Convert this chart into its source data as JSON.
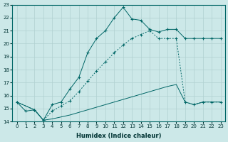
{
  "xlabel": "Humidex (Indice chaleur)",
  "bg_color": "#cce8e8",
  "grid_color": "#b0d0d0",
  "line_color": "#006666",
  "xlim": [
    -0.5,
    23.5
  ],
  "ylim": [
    14,
    23
  ],
  "xticks": [
    0,
    1,
    2,
    3,
    4,
    5,
    6,
    7,
    8,
    9,
    10,
    11,
    12,
    13,
    14,
    15,
    16,
    17,
    18,
    19,
    20,
    21,
    22,
    23
  ],
  "yticks": [
    14,
    15,
    16,
    17,
    18,
    19,
    20,
    21,
    22,
    23
  ],
  "line1_x": [
    0,
    1,
    2,
    3,
    4,
    5,
    6,
    7,
    8,
    9,
    10,
    11,
    12,
    13,
    14,
    15,
    16,
    17,
    18,
    19,
    20,
    21,
    22,
    23
  ],
  "line1_y": [
    15.5,
    14.8,
    14.9,
    14.1,
    15.3,
    15.5,
    16.5,
    17.4,
    19.3,
    20.4,
    21.0,
    22.0,
    22.8,
    21.9,
    21.8,
    21.1,
    20.9,
    21.1,
    21.1,
    20.4,
    20.4,
    20.4,
    20.4,
    20.4
  ],
  "line2_x": [
    0,
    2,
    3,
    4,
    5,
    6,
    7,
    8,
    9,
    10,
    11,
    12,
    13,
    14,
    15,
    16,
    17,
    18,
    19,
    20,
    21,
    22,
    23
  ],
  "line2_y": [
    15.5,
    14.9,
    14.1,
    14.8,
    15.2,
    15.6,
    16.3,
    17.1,
    17.9,
    18.6,
    19.3,
    19.9,
    20.4,
    20.7,
    21.0,
    20.4,
    20.4,
    20.4,
    15.5,
    15.3,
    15.5,
    15.5,
    15.5
  ],
  "line2_dotted": true,
  "line3_x": [
    0,
    2,
    3,
    4,
    5,
    6,
    7,
    8,
    9,
    10,
    11,
    12,
    13,
    14,
    15,
    16,
    17,
    18,
    19,
    20,
    21,
    22,
    23
  ],
  "line3_y": [
    15.5,
    14.9,
    14.1,
    14.2,
    14.35,
    14.5,
    14.7,
    14.9,
    15.1,
    15.3,
    15.5,
    15.7,
    15.9,
    16.1,
    16.3,
    16.5,
    16.7,
    16.85,
    15.5,
    15.3,
    15.5,
    15.5,
    15.5
  ],
  "xlabel_fontsize": 6,
  "tick_fontsize": 5
}
